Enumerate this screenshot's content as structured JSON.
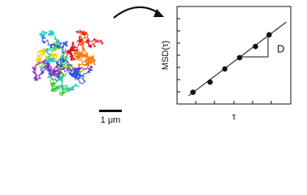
{
  "chart_data": {
    "type": "scatter",
    "x_label": "τ",
    "y_label": "MSD(τ)",
    "x": [
      1.4,
      2.9,
      4.2,
      5.5,
      6.9,
      8.1
    ],
    "values": [
      1.2,
      2.25,
      3.6,
      4.75,
      5.9,
      7.1
    ],
    "color": "#111111",
    "fit": {
      "x": [
        1,
        9.6
      ],
      "y": [
        0.82,
        8.4
      ]
    },
    "xlim": [
      0,
      10
    ],
    "ylim": [
      0,
      10
    ],
    "annotation": "D",
    "scale_bar_label": "1 μm"
  }
}
